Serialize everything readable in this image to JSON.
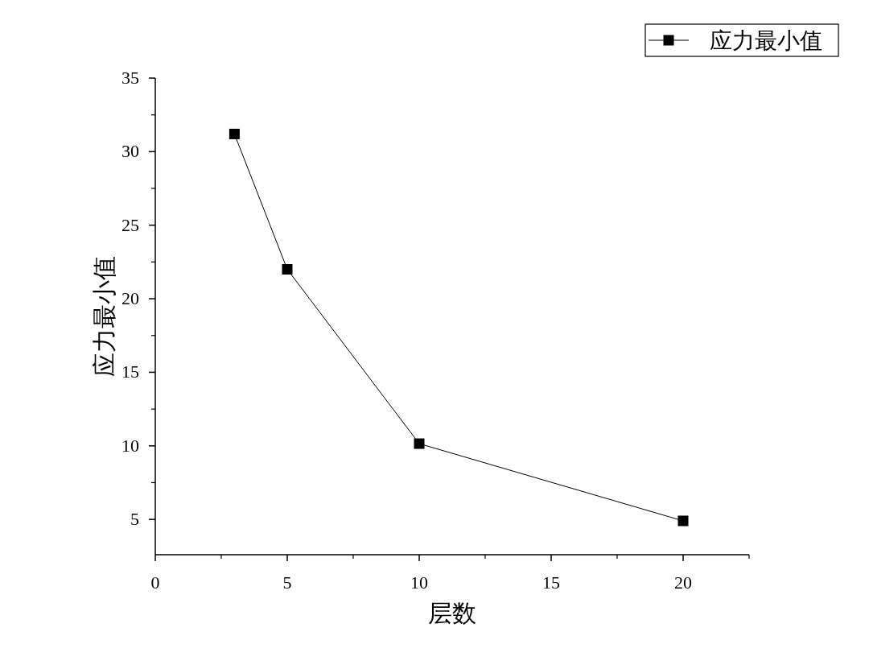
{
  "chart_data": {
    "type": "line",
    "xlabel": "层数",
    "ylabel": "应力最小值",
    "x": [
      3,
      5,
      10,
      20
    ],
    "series": [
      {
        "name": "应力最小值",
        "color": "#000000",
        "values": [
          31.2,
          22.0,
          10.15,
          4.9
        ]
      }
    ],
    "xlim": [
      0,
      22.5
    ],
    "xticks": [
      0,
      5,
      10,
      15,
      20
    ],
    "ylim": [
      2.6,
      35
    ],
    "yticks": [
      5,
      10,
      15,
      20,
      25,
      30,
      35
    ],
    "marker": "square",
    "line_style": "solid",
    "legend": "top right",
    "grid": false
  }
}
